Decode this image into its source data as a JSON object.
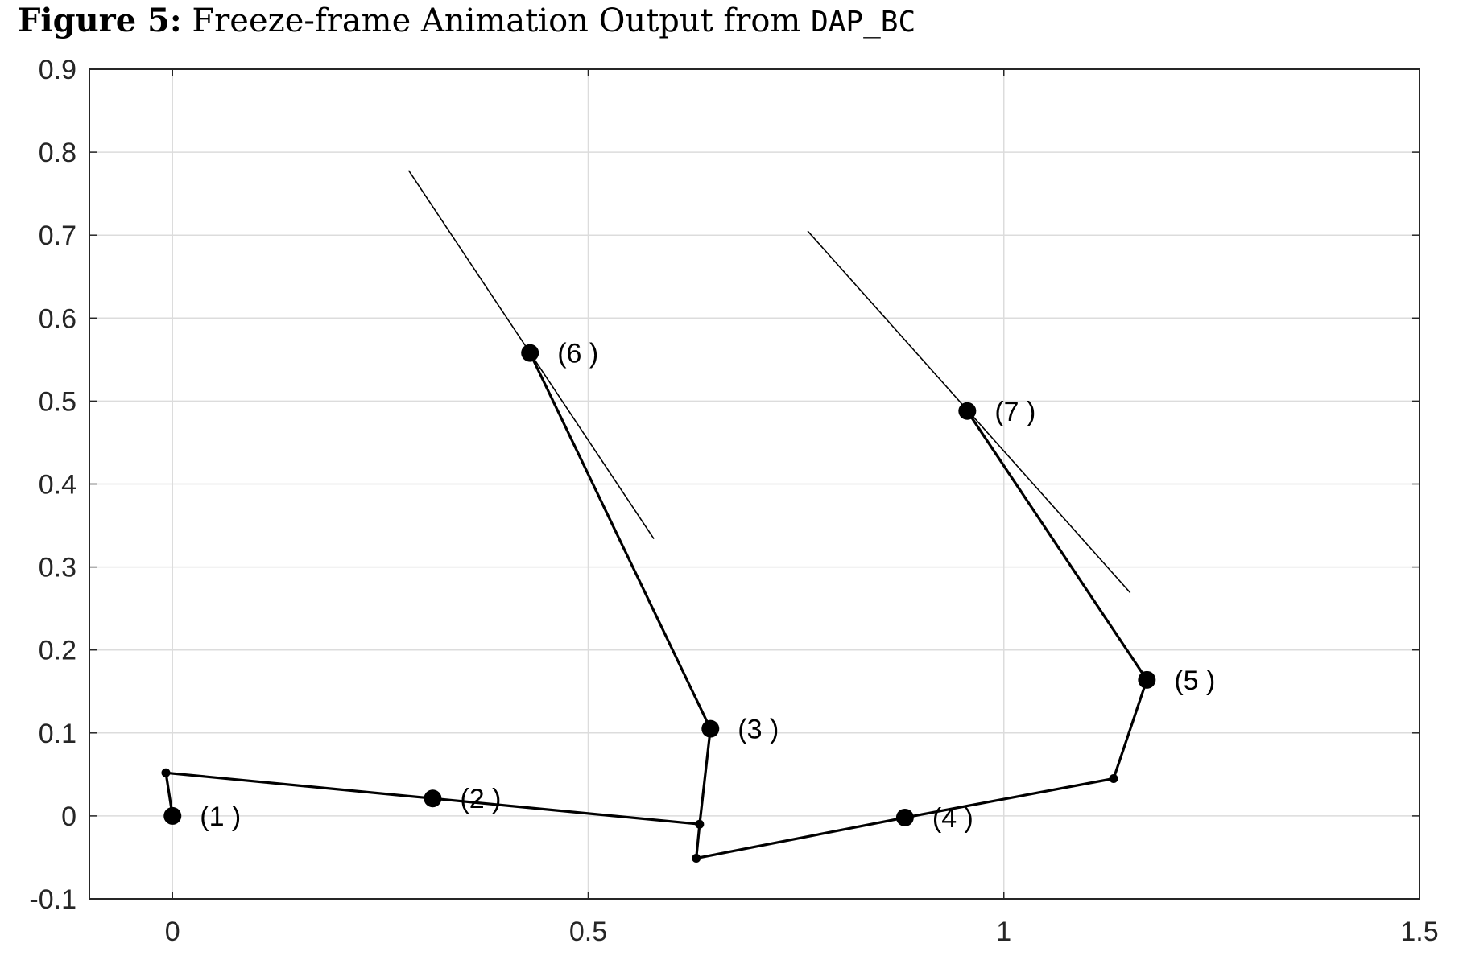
{
  "figure": {
    "label": "Figure 5:",
    "title_text": "Freeze-frame Animation Output from",
    "code_name": "DAP_BC"
  },
  "chart_data": {
    "type": "line",
    "xlim": [
      -0.1,
      1.5
    ],
    "ylim": [
      -0.1,
      0.9
    ],
    "xticks": [
      0,
      0.5,
      1,
      1.5
    ],
    "xtick_labels": [
      "0",
      "0.5",
      "1",
      "1.5"
    ],
    "yticks": [
      -0.1,
      0,
      0.1,
      0.2,
      0.3,
      0.4,
      0.5,
      0.6,
      0.7,
      0.8,
      0.9
    ],
    "ytick_labels": [
      "-0.1",
      "0",
      "0.1",
      "0.2",
      "0.3",
      "0.4",
      "0.5",
      "0.6",
      "0.7",
      "0.8",
      "0.9"
    ],
    "grid": true,
    "linkage_path": [
      [
        0.0,
        0.0
      ],
      [
        -0.008,
        0.052
      ],
      [
        0.313,
        0.021
      ],
      [
        0.634,
        -0.01
      ],
      [
        0.647,
        0.105
      ],
      [
        0.43,
        0.558
      ],
      [
        0.647,
        0.105
      ],
      [
        0.634,
        -0.01
      ],
      [
        0.63,
        -0.051
      ],
      [
        0.881,
        -0.002
      ],
      [
        1.132,
        0.045
      ],
      [
        1.172,
        0.164
      ],
      [
        0.956,
        0.488
      ]
    ],
    "slider_lines": [
      {
        "start": [
          0.284,
          0.778
        ],
        "end": [
          0.579,
          0.334
        ]
      },
      {
        "start": [
          0.764,
          0.705
        ],
        "end": [
          1.152,
          0.269
        ]
      }
    ],
    "small_joints": [
      [
        -0.008,
        0.052
      ],
      [
        0.634,
        -0.01
      ],
      [
        0.63,
        -0.051
      ],
      [
        1.132,
        0.045
      ]
    ],
    "points": [
      {
        "label": "(1 )",
        "x": 0.0,
        "y": 0.0
      },
      {
        "label": "(2 )",
        "x": 0.313,
        "y": 0.021
      },
      {
        "label": "(3 )",
        "x": 0.647,
        "y": 0.105
      },
      {
        "label": "(4 )",
        "x": 0.881,
        "y": -0.002
      },
      {
        "label": "(5 )",
        "x": 1.172,
        "y": 0.164
      },
      {
        "label": "(6 )",
        "x": 0.43,
        "y": 0.558
      },
      {
        "label": "(7 )",
        "x": 0.956,
        "y": 0.488
      }
    ]
  }
}
